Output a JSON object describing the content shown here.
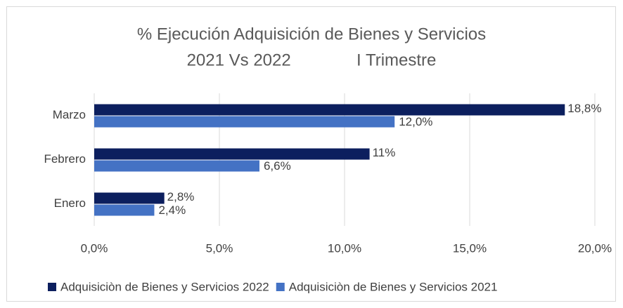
{
  "chart_data": {
    "type": "bar",
    "orientation": "horizontal",
    "title": "% Ejecución Adquisición de Bienes y Servicios",
    "subtitle": "2021 Vs 2022              I Trimestre",
    "categories": [
      "Marzo",
      "Febrero",
      "Enero"
    ],
    "series": [
      {
        "name": "Adquisiciòn de Bienes y Servicios 2022",
        "color": "#0c1f5e",
        "values": [
          18.8,
          11,
          2.8
        ],
        "value_labels": [
          "18,8%",
          "11%",
          "2,8%"
        ]
      },
      {
        "name": "Adquisiciòn de Bienes y Servicios 2021",
        "color": "#4472c4",
        "values": [
          12.0,
          6.6,
          2.4
        ],
        "value_labels": [
          "12,0%",
          "6,6%",
          "2,4%"
        ]
      }
    ],
    "xlim": [
      0,
      20
    ],
    "xticks": [
      {
        "value": 0,
        "label": "0,0%"
      },
      {
        "value": 5,
        "label": "5,0%"
      },
      {
        "value": 10,
        "label": "10,0%"
      },
      {
        "value": 15,
        "label": "15,0%"
      },
      {
        "value": 20,
        "label": "20,0%"
      }
    ],
    "grid": true,
    "legend": "bottom"
  }
}
